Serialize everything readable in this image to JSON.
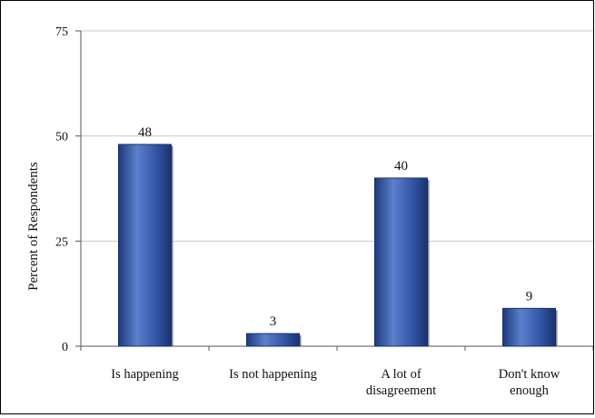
{
  "chart_data": {
    "type": "bar",
    "title": "",
    "xlabel": "",
    "ylabel": "Percent of Respondents",
    "ylim": [
      0,
      75
    ],
    "yticks": [
      "0",
      "25",
      "50",
      "75"
    ],
    "grid": true,
    "legend": "none",
    "categories": [
      [
        "Is happening"
      ],
      [
        "Is not happening"
      ],
      [
        "A lot of",
        "disagreement"
      ],
      [
        "Don't know",
        "enough"
      ]
    ],
    "values": [
      48,
      3,
      40,
      9
    ],
    "data_labels": [
      "48",
      "3",
      "40",
      "9"
    ],
    "bar_color": "#2f4f9f",
    "bar_highlight": "#5b80cc",
    "bar_shadow": "#18306b"
  }
}
